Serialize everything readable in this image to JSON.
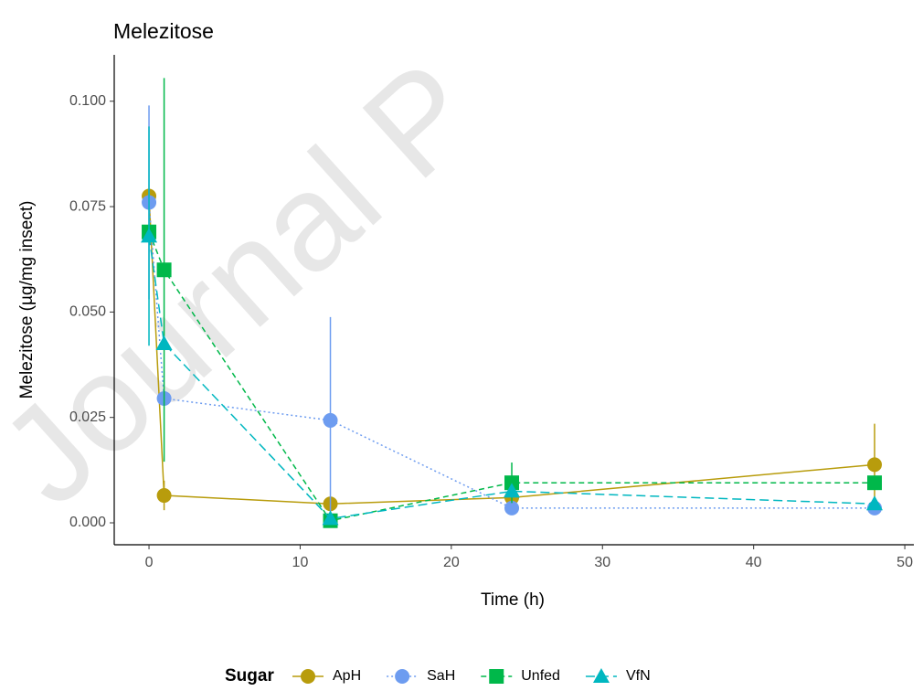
{
  "chart_data": {
    "type": "line",
    "title": "Melezitose",
    "watermark": "Journal P",
    "x_label": "Time (h)",
    "y_label": "Melezitose (µg/mg insect)",
    "legend_title": "Sugar",
    "legend": "bottom",
    "x": [
      0,
      1,
      12,
      24,
      48
    ],
    "xlim": [
      -2.3,
      50.6
    ],
    "xticks": [
      0,
      10,
      20,
      30,
      40,
      50
    ],
    "ylim": [
      -0.0052,
      0.111
    ],
    "yticks": [
      {
        "value": 0,
        "label": "0.000"
      },
      {
        "value": 0.025,
        "label": "0.025"
      },
      {
        "value": 0.05,
        "label": "0.050"
      },
      {
        "value": 0.075,
        "label": "0.075"
      },
      {
        "value": 0.1,
        "label": "0.100"
      }
    ],
    "series": [
      {
        "name": "ApH",
        "color": "#b89c0c",
        "marker": "circle",
        "dash": "solid",
        "values": [
          0.0775,
          0.0065,
          0.0045,
          0.006,
          0.0138
        ],
        "errors": [
          null,
          0.0035,
          null,
          null,
          0.0097
        ]
      },
      {
        "name": "SaH",
        "color": "#6d9cf0",
        "marker": "circle",
        "dash": "dotted",
        "values": [
          0.076,
          0.0295,
          0.0243,
          0.0035,
          0.0035
        ],
        "errors": [
          0.023,
          null,
          0.0245,
          null,
          null
        ]
      },
      {
        "name": "Unfed",
        "color": "#00b84a",
        "marker": "square",
        "dash": "dashed",
        "values": [
          0.069,
          0.06,
          0.0005,
          0.0095,
          0.0095
        ],
        "errors": [
          null,
          0.0455,
          null,
          0.0048,
          null
        ]
      },
      {
        "name": "VfN",
        "color": "#00b7c0",
        "marker": "triangle",
        "dash": "longdash",
        "values": [
          0.068,
          0.0425,
          0.001,
          0.0075,
          0.0045
        ],
        "errors": [
          0.026,
          null,
          null,
          null,
          null
        ]
      }
    ]
  }
}
